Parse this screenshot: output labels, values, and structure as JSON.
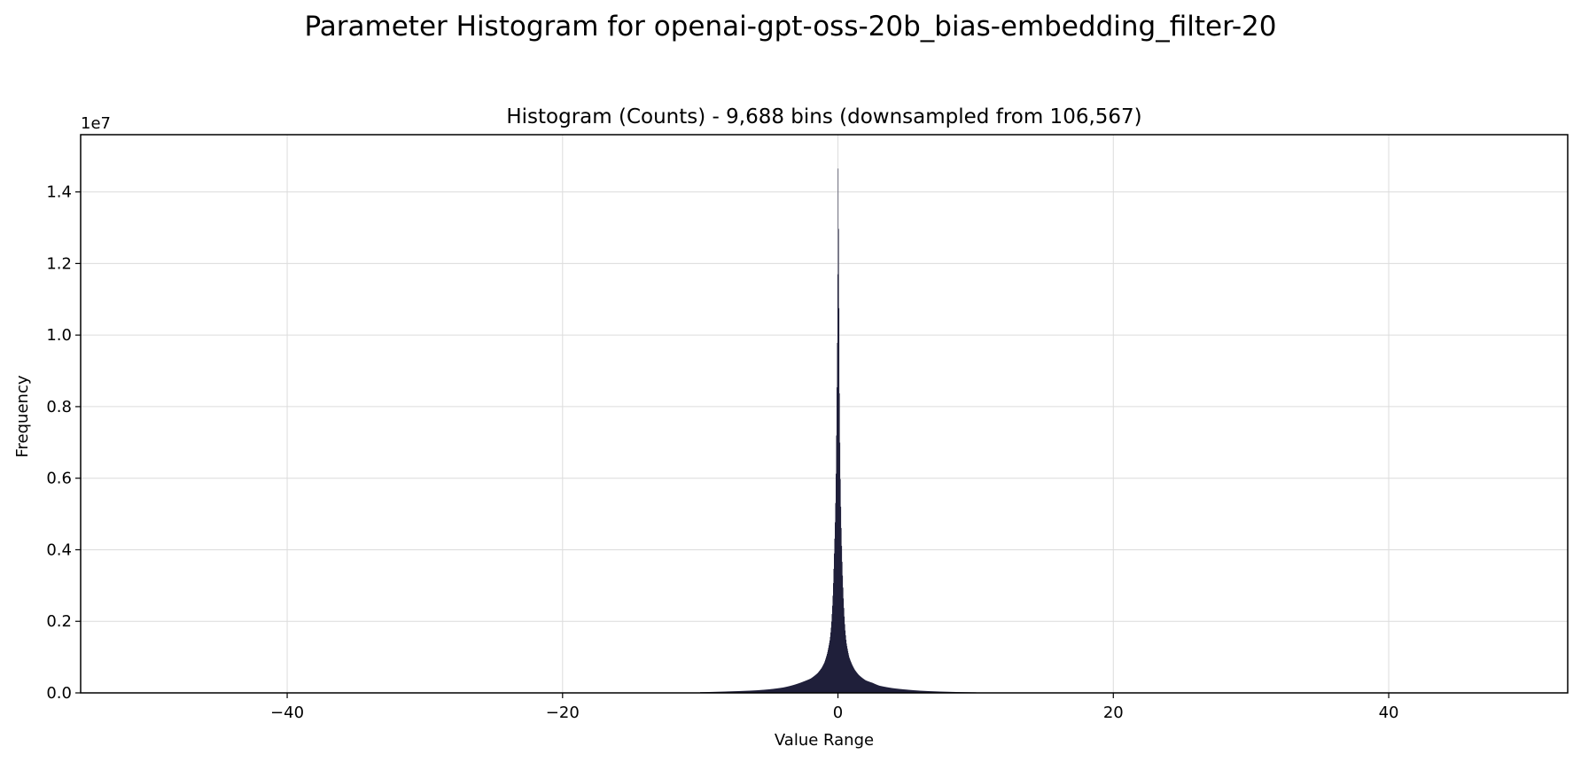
{
  "chart_data": {
    "type": "histogram",
    "suptitle": "Parameter Histogram for openai-gpt-oss-20b_bias-embedding_filter-20",
    "title": "Histogram (Counts) - 9,688 bins (downsampled from 106,567)",
    "xlabel": "Value Range",
    "ylabel": "Frequency",
    "y_offset_label": "1e7",
    "xlim": [
      -55,
      53
    ],
    "ylim": [
      0,
      15600000
    ],
    "x_ticks": [
      -40,
      -20,
      0,
      20,
      40
    ],
    "x_tick_labels": [
      "−40",
      "−20",
      "0",
      "20",
      "40"
    ],
    "y_ticks": [
      0,
      2000000,
      4000000,
      6000000,
      8000000,
      10000000,
      12000000,
      14000000
    ],
    "y_tick_labels": [
      "0.0",
      "0.2",
      "0.4",
      "0.6",
      "0.8",
      "1.0",
      "1.2",
      "1.4"
    ],
    "grid": true,
    "bar_color": "#1f1f3a",
    "series": [
      {
        "name": "Counts",
        "bins_x": [
          -10,
          -8,
          -6,
          -5,
          -4,
          -3,
          -2.5,
          -2,
          -1.5,
          -1.2,
          -1,
          -0.8,
          -0.6,
          -0.5,
          -0.4,
          -0.3,
          -0.2,
          -0.15,
          -0.1,
          -0.05,
          0,
          0.05,
          0.1,
          0.15,
          0.2,
          0.3,
          0.4,
          0.5,
          0.6,
          0.8,
          1,
          1.2,
          1.5,
          2,
          2.5,
          3,
          4,
          5,
          6,
          8,
          10
        ],
        "counts": [
          20000,
          40000,
          70000,
          100000,
          150000,
          250000,
          320000,
          400000,
          550000,
          700000,
          850000,
          1100000,
          1500000,
          1900000,
          2600000,
          3800000,
          5200000,
          6500000,
          8500000,
          10500000,
          14900000,
          11800000,
          8000000,
          6200000,
          5000000,
          3500000,
          2500000,
          1800000,
          1400000,
          1000000,
          800000,
          650000,
          500000,
          350000,
          280000,
          200000,
          130000,
          90000,
          60000,
          30000,
          15000
        ]
      }
    ]
  }
}
